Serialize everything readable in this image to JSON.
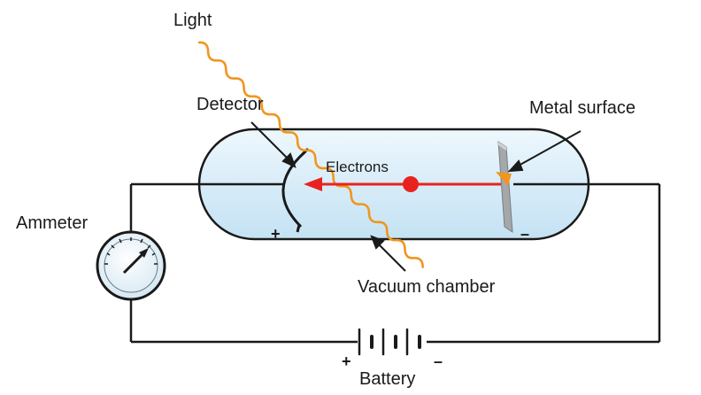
{
  "labels": {
    "light": "Light",
    "detector": "Detector",
    "metal_surface": "Metal surface",
    "electrons": "Electrons",
    "ammeter": "Ammeter",
    "vacuum_chamber": "Vacuum chamber",
    "battery": "Battery"
  },
  "signs": {
    "detector_plus": "+",
    "metal_minus": "–",
    "battery_plus": "+",
    "battery_minus": "–"
  },
  "colors": {
    "light_wave": "#f0961e",
    "electron": "#e8231f",
    "chamber_fill": "#dbeef9",
    "wire": "#1a1a1a"
  }
}
